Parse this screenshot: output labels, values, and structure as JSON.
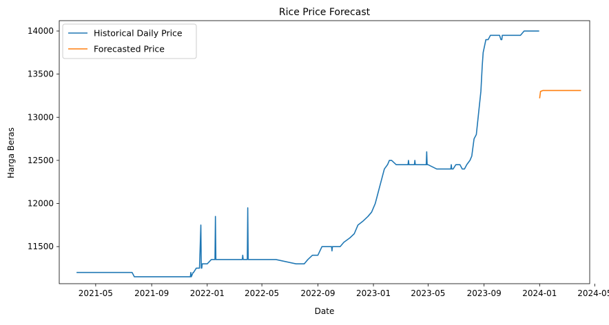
{
  "chart_data": {
    "type": "line",
    "title": "Rice Price Forecast",
    "xlabel": "Date",
    "ylabel": "Harga Beras",
    "x_type": "date",
    "xlim": [
      "2021-02-10",
      "2024-04-20"
    ],
    "ylim": [
      11070,
      14120
    ],
    "x_ticks": [
      "2021-05",
      "2021-09",
      "2022-01",
      "2022-05",
      "2022-09",
      "2023-01",
      "2023-05",
      "2023-09",
      "2024-01",
      "2024-05"
    ],
    "x_tick_dates": [
      "2021-05-01",
      "2021-09-01",
      "2022-01-01",
      "2022-05-01",
      "2022-09-01",
      "2023-01-01",
      "2023-05-01",
      "2023-09-01",
      "2024-01-01",
      "2024-05-01"
    ],
    "y_ticks": [
      11500,
      12000,
      12500,
      13000,
      13500,
      14000
    ],
    "grid": false,
    "legend_position": "top-left",
    "series": [
      {
        "name": "Historical Daily Price",
        "color": "#1f77b4",
        "x": [
          "2021-03-20",
          "2021-07-20",
          "2021-07-25",
          "2021-11-25",
          "2021-11-26",
          "2021-11-27",
          "2021-12-01",
          "2021-12-02",
          "2021-12-08",
          "2021-12-15",
          "2021-12-18",
          "2021-12-19",
          "2021-12-20",
          "2021-12-21",
          "2021-12-22",
          "2022-01-01",
          "2022-01-10",
          "2022-01-18",
          "2022-01-19",
          "2022-01-20",
          "2022-01-21",
          "2022-03-19",
          "2022-03-20",
          "2022-03-21",
          "2022-03-30",
          "2022-03-31",
          "2022-04-01",
          "2022-04-02",
          "2022-06-01",
          "2022-07-15",
          "2022-08-02",
          "2022-08-10",
          "2022-08-20",
          "2022-09-01",
          "2022-09-10",
          "2022-10-01",
          "2022-10-02",
          "2022-10-03",
          "2022-10-20",
          "2022-10-28",
          "2022-11-10",
          "2022-11-20",
          "2022-11-28",
          "2022-12-10",
          "2022-12-20",
          "2022-12-28",
          "2023-01-05",
          "2023-01-10",
          "2023-01-15",
          "2023-01-20",
          "2023-01-25",
          "2023-02-01",
          "2023-02-05",
          "2023-02-10",
          "2023-02-20",
          "2023-02-25",
          "2023-03-01",
          "2023-03-18",
          "2023-03-19",
          "2023-03-20",
          "2023-04-01",
          "2023-04-02",
          "2023-04-03",
          "2023-04-27",
          "2023-04-28",
          "2023-04-29",
          "2023-05-01",
          "2023-05-20",
          "2023-06-01",
          "2023-06-20",
          "2023-06-21",
          "2023-06-22",
          "2023-06-25",
          "2023-07-01",
          "2023-07-10",
          "2023-07-15",
          "2023-07-20",
          "2023-07-25",
          "2023-08-01",
          "2023-08-05",
          "2023-08-10",
          "2023-08-15",
          "2023-08-20",
          "2023-08-25",
          "2023-08-28",
          "2023-08-30",
          "2023-09-01",
          "2023-09-03",
          "2023-09-05",
          "2023-09-08",
          "2023-09-10",
          "2023-09-15",
          "2023-09-20",
          "2023-10-05",
          "2023-10-08",
          "2023-10-10",
          "2023-10-11",
          "2023-11-18",
          "2023-11-20",
          "2023-11-28",
          "2023-12-05",
          "2023-12-08",
          "2023-12-31"
        ],
        "y": [
          11200,
          11200,
          11150,
          11150,
          11200,
          11150,
          11200,
          11200,
          11250,
          11250,
          11750,
          11250,
          11250,
          11300,
          11300,
          11300,
          11350,
          11350,
          11850,
          11350,
          11350,
          11350,
          11400,
          11350,
          11350,
          11950,
          11350,
          11350,
          11350,
          11300,
          11300,
          11350,
          11400,
          11400,
          11500,
          11500,
          11450,
          11500,
          11500,
          11550,
          11600,
          11650,
          11750,
          11800,
          11850,
          11900,
          12000,
          12100,
          12200,
          12300,
          12400,
          12450,
          12500,
          12500,
          12450,
          12450,
          12450,
          12450,
          12500,
          12450,
          12450,
          12500,
          12450,
          12450,
          12600,
          12450,
          12450,
          12400,
          12400,
          12400,
          12450,
          12400,
          12400,
          12450,
          12450,
          12400,
          12400,
          12450,
          12500,
          12550,
          12750,
          12800,
          13050,
          13300,
          13600,
          13750,
          13800,
          13850,
          13900,
          13900,
          13900,
          13950,
          13950,
          13950,
          13900,
          13900,
          13950,
          13950,
          13950,
          14000,
          14000,
          14000,
          14000
        ]
      },
      {
        "name": "Forecasted Price",
        "color": "#ff7f0e",
        "x": [
          "2024-01-01",
          "2024-01-03",
          "2024-01-08",
          "2024-04-01"
        ],
        "y": [
          13220,
          13300,
          13310,
          13310
        ]
      }
    ]
  }
}
